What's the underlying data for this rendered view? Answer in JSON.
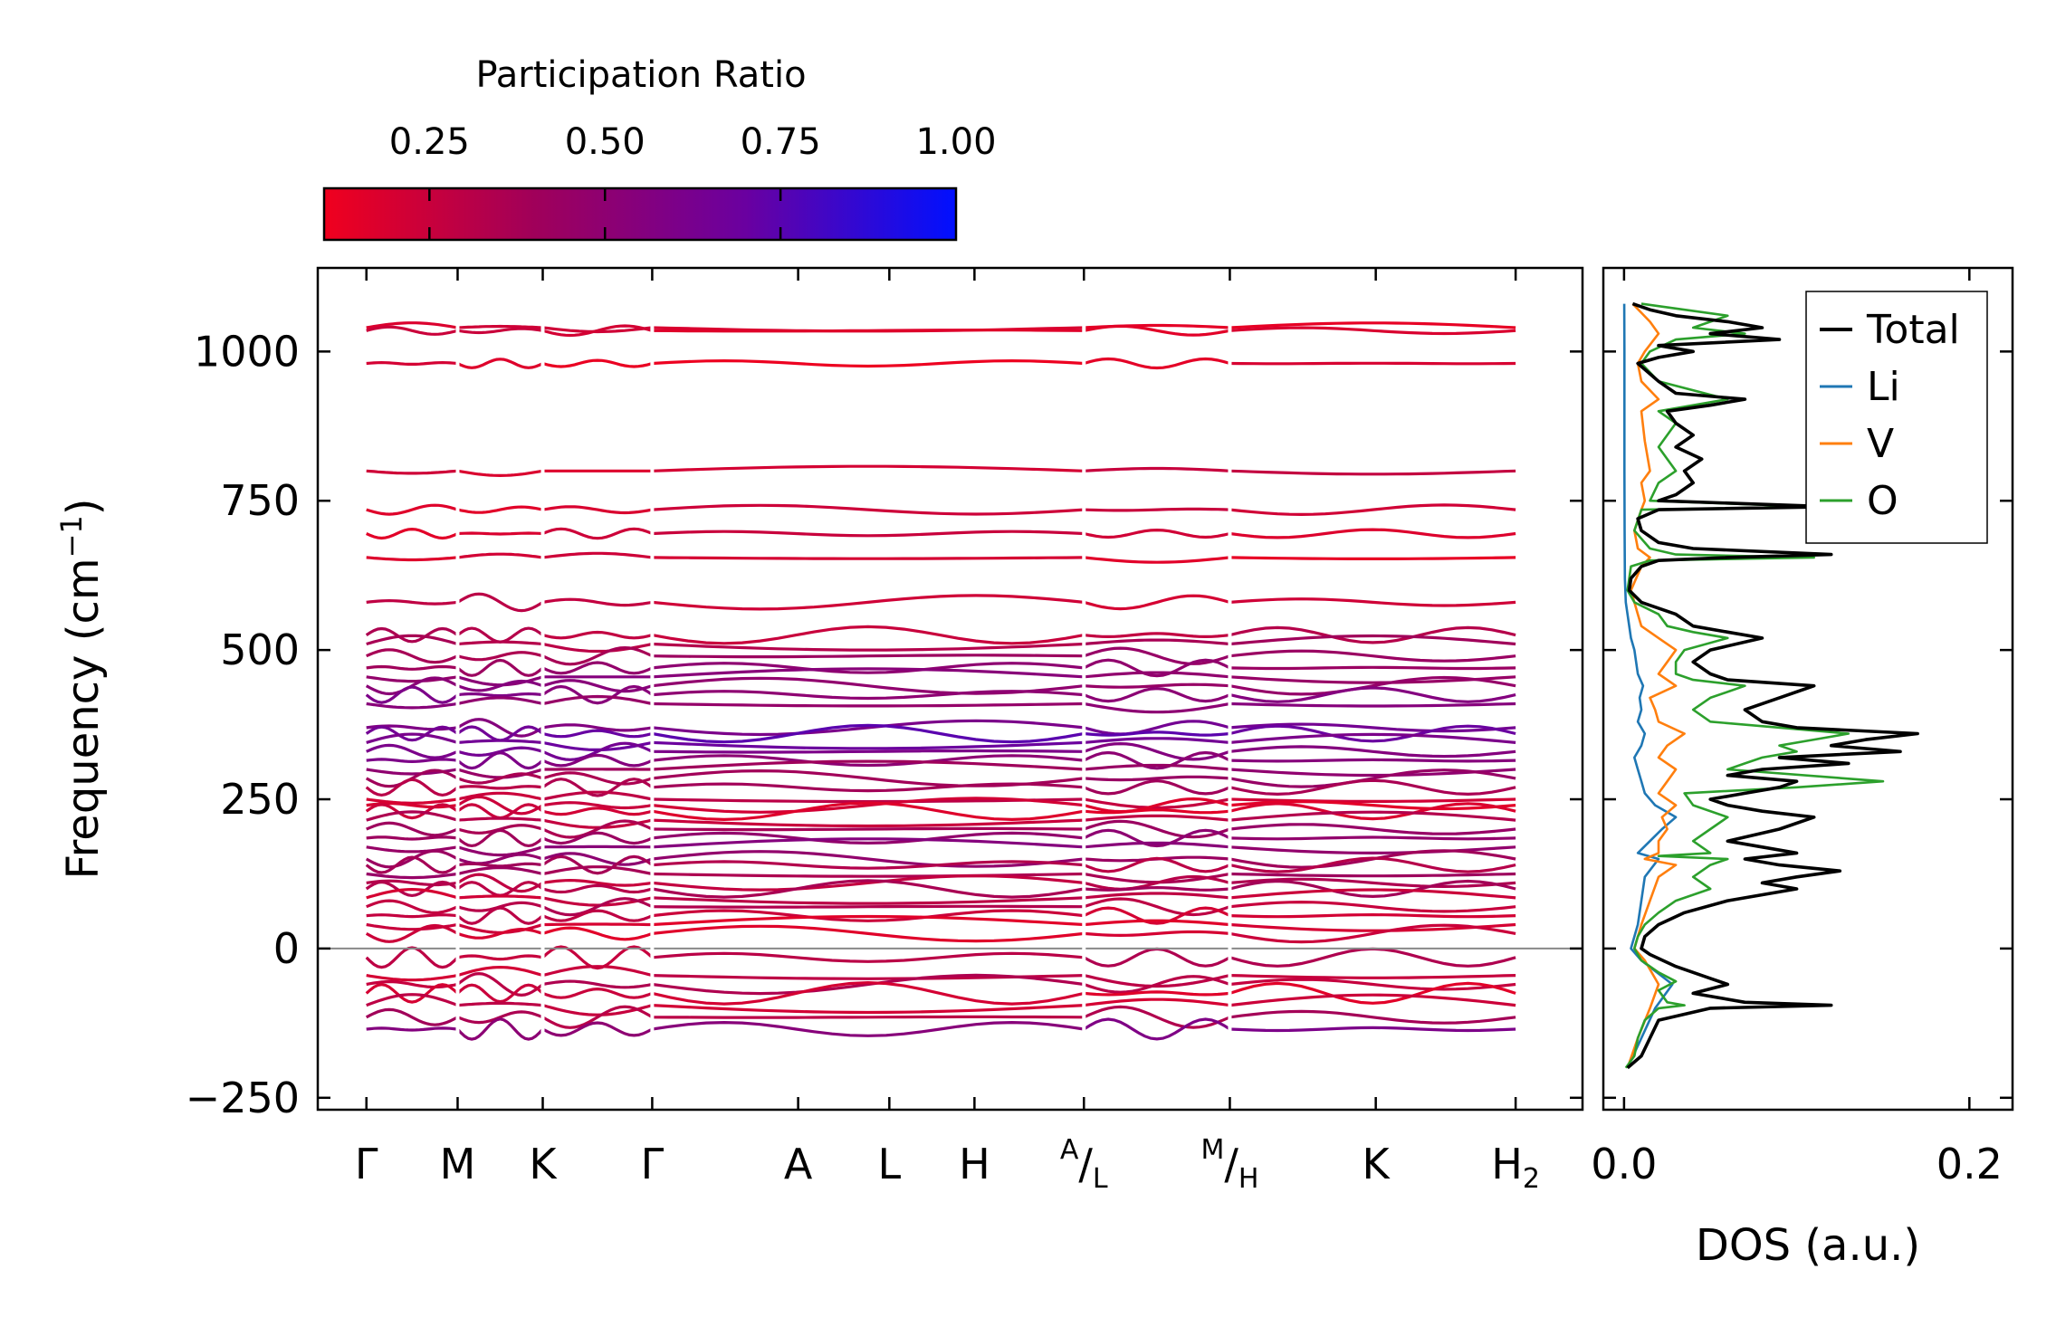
{
  "chart_data": [
    {
      "type": "line",
      "name": "phonon-band-structure",
      "colorbar": {
        "title": "Participation Ratio",
        "ticks": [
          "0.25",
          "0.50",
          "0.75",
          "1.00"
        ],
        "tick_values": [
          0.25,
          0.5,
          0.75,
          1.0
        ],
        "range": [
          0.1,
          1.0
        ],
        "colors": [
          "#f0001e",
          "#a0005a",
          "#6a00a0",
          "#0010ff"
        ]
      },
      "ylabel": "Frequency (cm",
      "ylabel_sup": "−1",
      "ylabel_end": ")",
      "ylim": [
        -270,
        1140
      ],
      "yticks": [
        -250,
        0,
        250,
        500,
        750,
        1000
      ],
      "ytick_labels": [
        "−250",
        "0",
        "250",
        "500",
        "750",
        "1000"
      ],
      "xlim": [
        -0.4,
        10.0
      ],
      "path_ticks": [
        {
          "label": "Γ",
          "x": 0.0
        },
        {
          "label": "M",
          "x": 0.75
        },
        {
          "label": "K",
          "x": 1.45
        },
        {
          "label": "Γ",
          "x": 2.35
        },
        {
          "label": "A",
          "x": 3.55
        },
        {
          "label": "L",
          "x": 4.3
        },
        {
          "label": "H",
          "x": 5.0
        },
        {
          "label": "A",
          "x": 5.9,
          "pre_sup": "A",
          "main": "/",
          "sub": "L"
        },
        {
          "label": "M",
          "x": 7.1,
          "pre_sup": "M",
          "main": "/",
          "sub": "H"
        },
        {
          "label": "K",
          "x": 8.3
        },
        {
          "label": "H",
          "x": 9.45,
          "sub": "2"
        }
      ],
      "segments": [
        [
          0.0,
          0.75
        ],
        [
          0.75,
          1.45
        ],
        [
          1.45,
          2.35
        ],
        [
          2.35,
          5.9
        ],
        [
          5.9,
          7.1
        ],
        [
          7.1,
          9.45
        ]
      ],
      "flat_bands": [
        {
          "y": 1040,
          "pr": 0.18
        },
        {
          "y": 1035,
          "pr": 0.2
        },
        {
          "y": 980,
          "pr": 0.16
        },
        {
          "y": 800,
          "pr": 0.22
        },
        {
          "y": 735,
          "pr": 0.2
        },
        {
          "y": 695,
          "pr": 0.2
        },
        {
          "y": 655,
          "pr": 0.18
        },
        {
          "y": 580,
          "pr": 0.25
        },
        {
          "y": 525,
          "pr": 0.3
        },
        {
          "y": 510,
          "pr": 0.35
        },
        {
          "y": 490,
          "pr": 0.4
        },
        {
          "y": 470,
          "pr": 0.45
        },
        {
          "y": 455,
          "pr": 0.5
        },
        {
          "y": 440,
          "pr": 0.5
        },
        {
          "y": 425,
          "pr": 0.55
        },
        {
          "y": 410,
          "pr": 0.5
        },
        {
          "y": 370,
          "pr": 0.6
        },
        {
          "y": 360,
          "pr": 0.7
        },
        {
          "y": 345,
          "pr": 0.65
        },
        {
          "y": 330,
          "pr": 0.6
        },
        {
          "y": 315,
          "pr": 0.55
        },
        {
          "y": 300,
          "pr": 0.45
        },
        {
          "y": 285,
          "pr": 0.4
        },
        {
          "y": 270,
          "pr": 0.35
        },
        {
          "y": 250,
          "pr": 0.25
        },
        {
          "y": 240,
          "pr": 0.2
        },
        {
          "y": 230,
          "pr": 0.2
        },
        {
          "y": 215,
          "pr": 0.3
        },
        {
          "y": 200,
          "pr": 0.4
        },
        {
          "y": 185,
          "pr": 0.45
        },
        {
          "y": 170,
          "pr": 0.5
        },
        {
          "y": 150,
          "pr": 0.45
        },
        {
          "y": 140,
          "pr": 0.35
        },
        {
          "y": 125,
          "pr": 0.4
        },
        {
          "y": 110,
          "pr": 0.3
        },
        {
          "y": 100,
          "pr": 0.35
        },
        {
          "y": 85,
          "pr": 0.25
        },
        {
          "y": 70,
          "pr": 0.3
        },
        {
          "y": 55,
          "pr": 0.25
        },
        {
          "y": 40,
          "pr": 0.2
        },
        {
          "y": 25,
          "pr": 0.2
        }
      ],
      "soft_bands": [
        {
          "y": -15,
          "pr": 0.3
        },
        {
          "y": -45,
          "pr": 0.25
        },
        {
          "y": -60,
          "pr": 0.3
        },
        {
          "y": -75,
          "pr": 0.2
        },
        {
          "y": -95,
          "pr": 0.25
        },
        {
          "y": -115,
          "pr": 0.35
        },
        {
          "y": -135,
          "pr": 0.55
        }
      ],
      "zero_line": 0
    },
    {
      "type": "line",
      "name": "phonon-dos",
      "xlabel": "DOS (a.u.)",
      "xlim": [
        -0.012,
        0.225
      ],
      "xticks": [
        0.0,
        0.2
      ],
      "xtick_labels": [
        "0.0",
        "0.2"
      ],
      "ylim": [
        -270,
        1140
      ],
      "series": [
        {
          "name": "Total",
          "color": "#000000",
          "y": [
            -200,
            -180,
            -150,
            -120,
            -100,
            -95,
            -90,
            -75,
            -60,
            -50,
            -30,
            -10,
            0,
            20,
            40,
            60,
            80,
            100,
            110,
            120,
            130,
            140,
            150,
            160,
            170,
            180,
            200,
            220,
            230,
            240,
            250,
            260,
            270,
            280,
            290,
            300,
            310,
            320,
            330,
            340,
            350,
            360,
            370,
            380,
            400,
            420,
            440,
            450,
            460,
            480,
            500,
            520,
            530,
            540,
            560,
            580,
            600,
            620,
            640,
            650,
            655,
            660,
            670,
            680,
            700,
            720,
            735,
            740,
            750,
            760,
            780,
            800,
            820,
            840,
            860,
            880,
            900,
            910,
            920,
            930,
            950,
            970,
            980,
            990,
            1000,
            1010,
            1020,
            1030,
            1040,
            1050,
            1060,
            1070,
            1080
          ],
          "x": [
            0.002,
            0.01,
            0.015,
            0.02,
            0.05,
            0.12,
            0.07,
            0.04,
            0.06,
            0.05,
            0.03,
            0.015,
            0.01,
            0.012,
            0.02,
            0.035,
            0.06,
            0.1,
            0.08,
            0.1,
            0.125,
            0.09,
            0.07,
            0.1,
            0.08,
            0.06,
            0.09,
            0.11,
            0.08,
            0.06,
            0.05,
            0.07,
            0.09,
            0.1,
            0.06,
            0.08,
            0.13,
            0.09,
            0.16,
            0.12,
            0.14,
            0.17,
            0.1,
            0.08,
            0.07,
            0.09,
            0.11,
            0.06,
            0.05,
            0.04,
            0.05,
            0.08,
            0.06,
            0.04,
            0.03,
            0.01,
            0.003,
            0.004,
            0.01,
            0.02,
            0.06,
            0.12,
            0.04,
            0.02,
            0.01,
            0.008,
            0.02,
            0.12,
            0.02,
            0.03,
            0.04,
            0.035,
            0.045,
            0.03,
            0.04,
            0.03,
            0.025,
            0.05,
            0.07,
            0.03,
            0.02,
            0.012,
            0.008,
            0.02,
            0.04,
            0.02,
            0.09,
            0.05,
            0.08,
            0.06,
            0.03,
            0.015,
            0.005
          ]
        },
        {
          "name": "Li",
          "color": "#1f77b4",
          "y": [
            -200,
            -150,
            -100,
            -60,
            -20,
            0,
            40,
            80,
            120,
            150,
            160,
            180,
            200,
            220,
            240,
            260,
            280,
            300,
            320,
            340,
            360,
            380,
            400,
            420,
            440,
            460,
            480,
            500,
            520,
            540,
            560,
            580,
            620,
            700,
            800,
            900,
            1000,
            1080
          ],
          "x": [
            0.002,
            0.01,
            0.018,
            0.028,
            0.01,
            0.004,
            0.008,
            0.01,
            0.012,
            0.02,
            0.008,
            0.015,
            0.022,
            0.03,
            0.018,
            0.012,
            0.01,
            0.008,
            0.006,
            0.01,
            0.012,
            0.008,
            0.01,
            0.009,
            0.011,
            0.008,
            0.007,
            0.006,
            0.004,
            0.003,
            0.002,
            0.001,
            0.0005,
            0.0003,
            0.0002,
            0.0002,
            0.0002,
            0.0001
          ]
        },
        {
          "name": "V",
          "color": "#ff7f0e",
          "y": [
            -200,
            -150,
            -100,
            -60,
            -20,
            0,
            40,
            80,
            120,
            140,
            150,
            160,
            180,
            200,
            220,
            240,
            260,
            280,
            300,
            320,
            340,
            360,
            380,
            400,
            420,
            440,
            460,
            480,
            500,
            520,
            540,
            560,
            600,
            640,
            655,
            670,
            700,
            735,
            750,
            780,
            800,
            850,
            900,
            920,
            950,
            980,
            1000,
            1030,
            1050,
            1080
          ],
          "x": [
            0.002,
            0.008,
            0.015,
            0.02,
            0.012,
            0.006,
            0.01,
            0.015,
            0.02,
            0.03,
            0.012,
            0.02,
            0.02,
            0.025,
            0.022,
            0.03,
            0.02,
            0.025,
            0.03,
            0.02,
            0.025,
            0.035,
            0.02,
            0.018,
            0.015,
            0.03,
            0.02,
            0.025,
            0.03,
            0.02,
            0.01,
            0.008,
            0.004,
            0.01,
            0.015,
            0.008,
            0.006,
            0.01,
            0.012,
            0.01,
            0.015,
            0.012,
            0.01,
            0.02,
            0.01,
            0.008,
            0.012,
            0.02,
            0.015,
            0.005
          ]
        },
        {
          "name": "O",
          "color": "#2ca02c",
          "y": [
            -200,
            -180,
            -150,
            -120,
            -100,
            -95,
            -90,
            -70,
            -55,
            -40,
            -20,
            0,
            20,
            40,
            60,
            80,
            100,
            120,
            140,
            150,
            155,
            160,
            180,
            200,
            220,
            240,
            260,
            270,
            280,
            300,
            310,
            320,
            330,
            340,
            350,
            360,
            380,
            400,
            420,
            440,
            450,
            460,
            480,
            500,
            520,
            530,
            540,
            560,
            580,
            600,
            640,
            650,
            655,
            660,
            670,
            700,
            735,
            740,
            750,
            780,
            800,
            840,
            880,
            900,
            910,
            920,
            950,
            980,
            1000,
            1020,
            1030,
            1040,
            1060,
            1080
          ],
          "x": [
            0.001,
            0.006,
            0.008,
            0.012,
            0.02,
            0.035,
            0.025,
            0.02,
            0.03,
            0.02,
            0.01,
            0.006,
            0.008,
            0.012,
            0.02,
            0.03,
            0.05,
            0.04,
            0.05,
            0.06,
            0.02,
            0.05,
            0.04,
            0.05,
            0.06,
            0.04,
            0.035,
            0.1,
            0.15,
            0.06,
            0.07,
            0.08,
            0.1,
            0.09,
            0.11,
            0.13,
            0.05,
            0.04,
            0.05,
            0.07,
            0.04,
            0.03,
            0.03,
            0.035,
            0.06,
            0.04,
            0.025,
            0.02,
            0.006,
            0.002,
            0.004,
            0.015,
            0.11,
            0.03,
            0.015,
            0.006,
            0.01,
            0.11,
            0.015,
            0.02,
            0.03,
            0.02,
            0.03,
            0.02,
            0.04,
            0.06,
            0.02,
            0.01,
            0.015,
            0.03,
            0.07,
            0.04,
            0.06,
            0.01
          ]
        }
      ]
    }
  ]
}
